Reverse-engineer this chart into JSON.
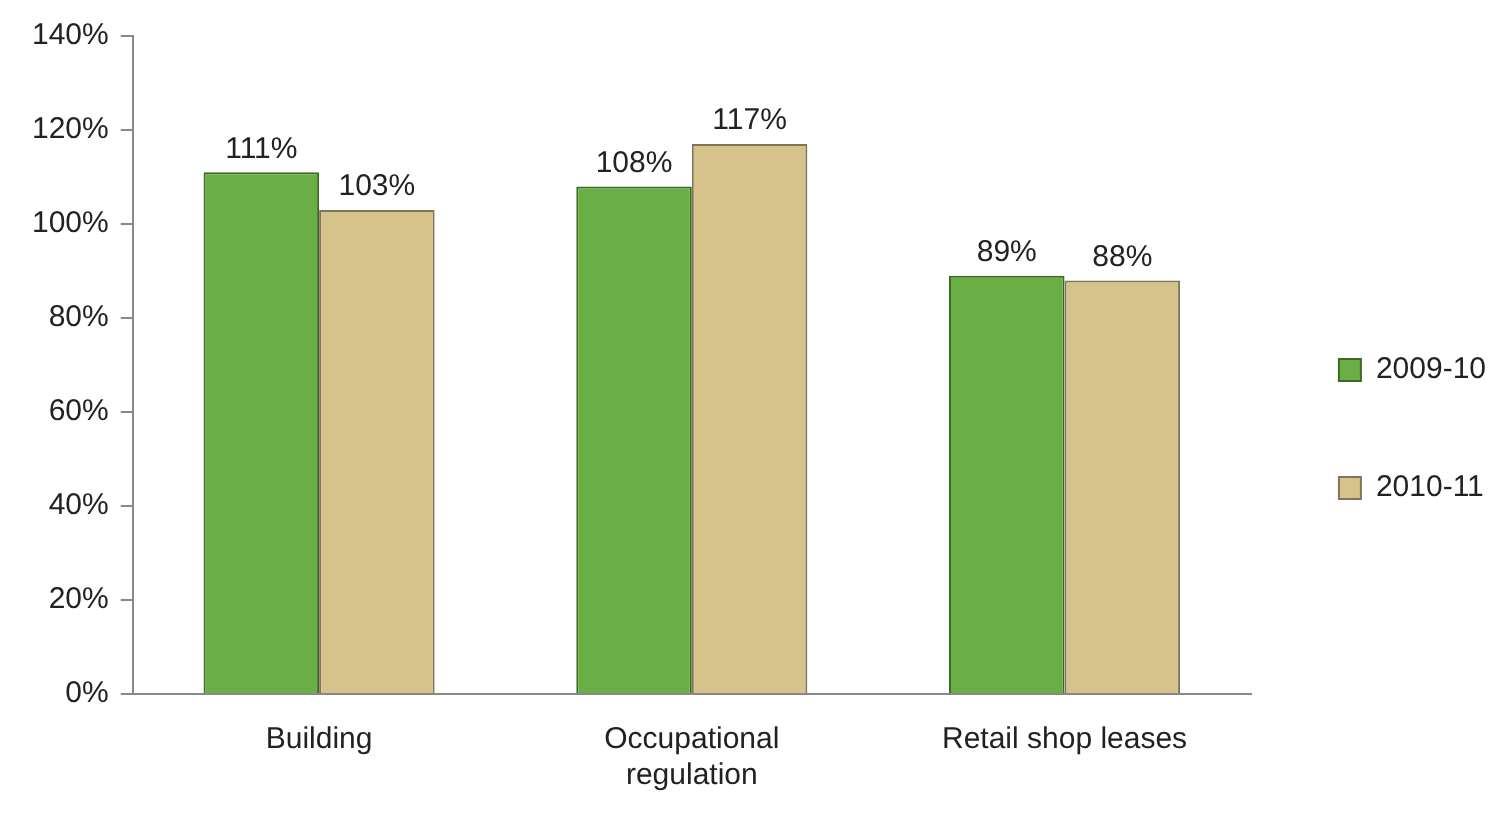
{
  "chart_data": {
    "type": "bar",
    "categories": [
      "Building",
      "Occupational regulation",
      "Retail shop leases"
    ],
    "series": [
      {
        "name": "2009-10",
        "color": "#6aaf45",
        "values": [
          111,
          108,
          89
        ],
        "value_labels": [
          "111%",
          "108%",
          "89%"
        ]
      },
      {
        "name": "2010-11",
        "color": "#d6c38c",
        "values": [
          103,
          117,
          88
        ],
        "value_labels": [
          "103%",
          "117%",
          "88%"
        ]
      }
    ],
    "ylim": [
      0,
      140
    ],
    "yticks": [
      {
        "value": 0,
        "label": "0%"
      },
      {
        "value": 20,
        "label": "20%"
      },
      {
        "value": 40,
        "label": "40%"
      },
      {
        "value": 60,
        "label": "60%"
      },
      {
        "value": 80,
        "label": "80%"
      },
      {
        "value": 100,
        "label": "100%"
      },
      {
        "value": 120,
        "label": "120%"
      },
      {
        "value": 140,
        "label": "140%"
      }
    ],
    "grid": false,
    "legend": "right"
  }
}
